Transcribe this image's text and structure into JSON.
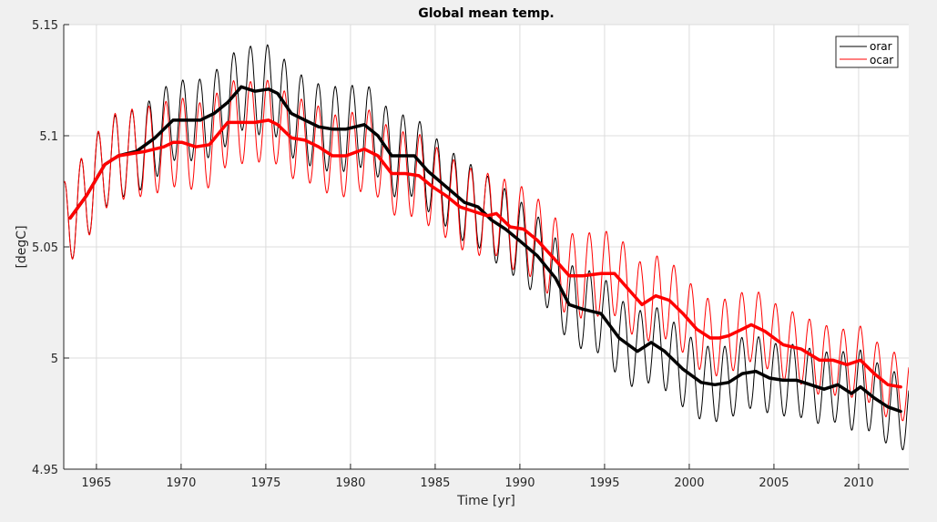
{
  "chart_data": {
    "type": "line",
    "title": "Global mean temp.",
    "xlabel": "Time [yr]",
    "ylabel": "[degC]",
    "xlim": [
      1963.07,
      2012.96
    ],
    "ylim": [
      4.95,
      5.15
    ],
    "grid": true,
    "legend_position": "top-right",
    "x_ticks": [
      1965,
      1970,
      1975,
      1980,
      1985,
      1990,
      1995,
      2000,
      2005,
      2010
    ],
    "x_tick_labels": [
      "1965",
      "1970",
      "1975",
      "1980",
      "1985",
      "1990",
      "1995",
      "2000",
      "2005",
      "2010"
    ],
    "y_ticks": [
      4.95,
      5.0,
      5.05,
      5.1,
      5.15
    ],
    "y_tick_labels": [
      "4.95",
      "5",
      "5.05",
      "5.1",
      "5.15"
    ],
    "series": [
      {
        "name": "orar",
        "color": "#000000",
        "kind": "smoothed",
        "x": [
          1963.45,
          1964.41,
          1965.49,
          1966.3,
          1967.37,
          1968.45,
          1969.52,
          1970.33,
          1971.13,
          1971.94,
          1972.75,
          1973.55,
          1974.36,
          1975.17,
          1975.7,
          1976.51,
          1977.32,
          1978.12,
          1978.93,
          1979.74,
          1980.81,
          1981.62,
          1982.43,
          1983.23,
          1983.77,
          1984.58,
          1985.65,
          1986.73,
          1987.53,
          1988.34,
          1989.15,
          1989.95,
          1991.03,
          1992.1,
          1992.91,
          1993.71,
          1994.79,
          1995.86,
          1996.94,
          1997.75,
          1998.55,
          1999.63,
          2000.7,
          2001.51,
          2002.32,
          2003.13,
          2003.93,
          2004.74,
          2005.54,
          2006.35,
          2007.16,
          2007.96,
          2008.77,
          2009.58,
          2010.11,
          2010.92,
          2011.73,
          2012.48
        ],
        "values": [
          5.063,
          5.073,
          5.087,
          5.091,
          5.093,
          5.099,
          5.107,
          5.107,
          5.107,
          5.11,
          5.115,
          5.122,
          5.12,
          5.121,
          5.119,
          5.11,
          5.107,
          5.104,
          5.103,
          5.103,
          5.105,
          5.1,
          5.091,
          5.091,
          5.091,
          5.084,
          5.077,
          5.07,
          5.068,
          5.062,
          5.058,
          5.053,
          5.046,
          5.036,
          5.024,
          5.022,
          5.02,
          5.009,
          5.003,
          5.007,
          5.003,
          4.995,
          4.989,
          4.988,
          4.989,
          4.993,
          4.994,
          4.991,
          4.99,
          4.99,
          4.988,
          4.986,
          4.988,
          4.984,
          4.987,
          4.982,
          4.978,
          4.976
        ]
      },
      {
        "name": "ocar",
        "color": "#ff0000",
        "kind": "smoothed",
        "x": [
          1963.45,
          1964.41,
          1965.49,
          1966.3,
          1967.91,
          1968.98,
          1969.52,
          1970.06,
          1970.87,
          1971.67,
          1972.75,
          1973.55,
          1974.36,
          1975.17,
          1975.7,
          1976.51,
          1977.32,
          1978.12,
          1978.93,
          1979.74,
          1980.81,
          1981.62,
          1982.43,
          1983.23,
          1984.04,
          1984.85,
          1985.65,
          1986.46,
          1987.26,
          1988.07,
          1988.61,
          1989.42,
          1990.22,
          1991.03,
          1992.1,
          1992.91,
          1993.71,
          1994.79,
          1995.59,
          1996.4,
          1997.21,
          1998.02,
          1998.82,
          1999.63,
          2000.44,
          2001.24,
          2001.78,
          2002.32,
          2003.13,
          2003.66,
          2004.47,
          2005.54,
          2006.62,
          2007.69,
          2008.5,
          2009.31,
          2010.11,
          2010.92,
          2011.73,
          2012.48
        ],
        "values": [
          5.063,
          5.073,
          5.087,
          5.091,
          5.093,
          5.095,
          5.097,
          5.097,
          5.095,
          5.096,
          5.106,
          5.106,
          5.106,
          5.107,
          5.105,
          5.099,
          5.098,
          5.095,
          5.091,
          5.091,
          5.094,
          5.091,
          5.083,
          5.083,
          5.082,
          5.077,
          5.073,
          5.068,
          5.066,
          5.064,
          5.065,
          5.059,
          5.058,
          5.053,
          5.044,
          5.037,
          5.037,
          5.038,
          5.038,
          5.031,
          5.024,
          5.028,
          5.026,
          5.02,
          5.013,
          5.009,
          5.009,
          5.01,
          5.013,
          5.015,
          5.012,
          5.006,
          5.004,
          4.999,
          4.999,
          4.997,
          4.999,
          4.993,
          4.988,
          4.987
        ]
      },
      {
        "name": "orar",
        "color": "#000000",
        "kind": "monthly",
        "base": "orar-smoothed",
        "x_start": 1963.0,
        "x_end": 2012.96,
        "period_years": 1.0,
        "amplitude_x": [
          1963.0,
          1970.0,
          1975.0,
          1985.0,
          1995.0,
          2005.0,
          2013.0
        ],
        "amplitude": [
          0.02,
          0.018,
          0.02,
          0.018,
          0.018,
          0.016,
          0.017
        ]
      },
      {
        "name": "ocar",
        "color": "#ff0000",
        "kind": "monthly",
        "base": "ocar-smoothed",
        "x_start": 1963.0,
        "x_end": 2012.96,
        "period_years": 1.0,
        "amplitude_x": [
          1963.0,
          1970.0,
          1975.0,
          1985.0,
          1995.0,
          2005.0,
          2013.0
        ],
        "amplitude": [
          0.02,
          0.02,
          0.018,
          0.019,
          0.019,
          0.016,
          0.015
        ]
      }
    ],
    "legend": [
      {
        "label": "orar",
        "color": "#000000"
      },
      {
        "label": "ocar",
        "color": "#ff0000"
      }
    ]
  }
}
